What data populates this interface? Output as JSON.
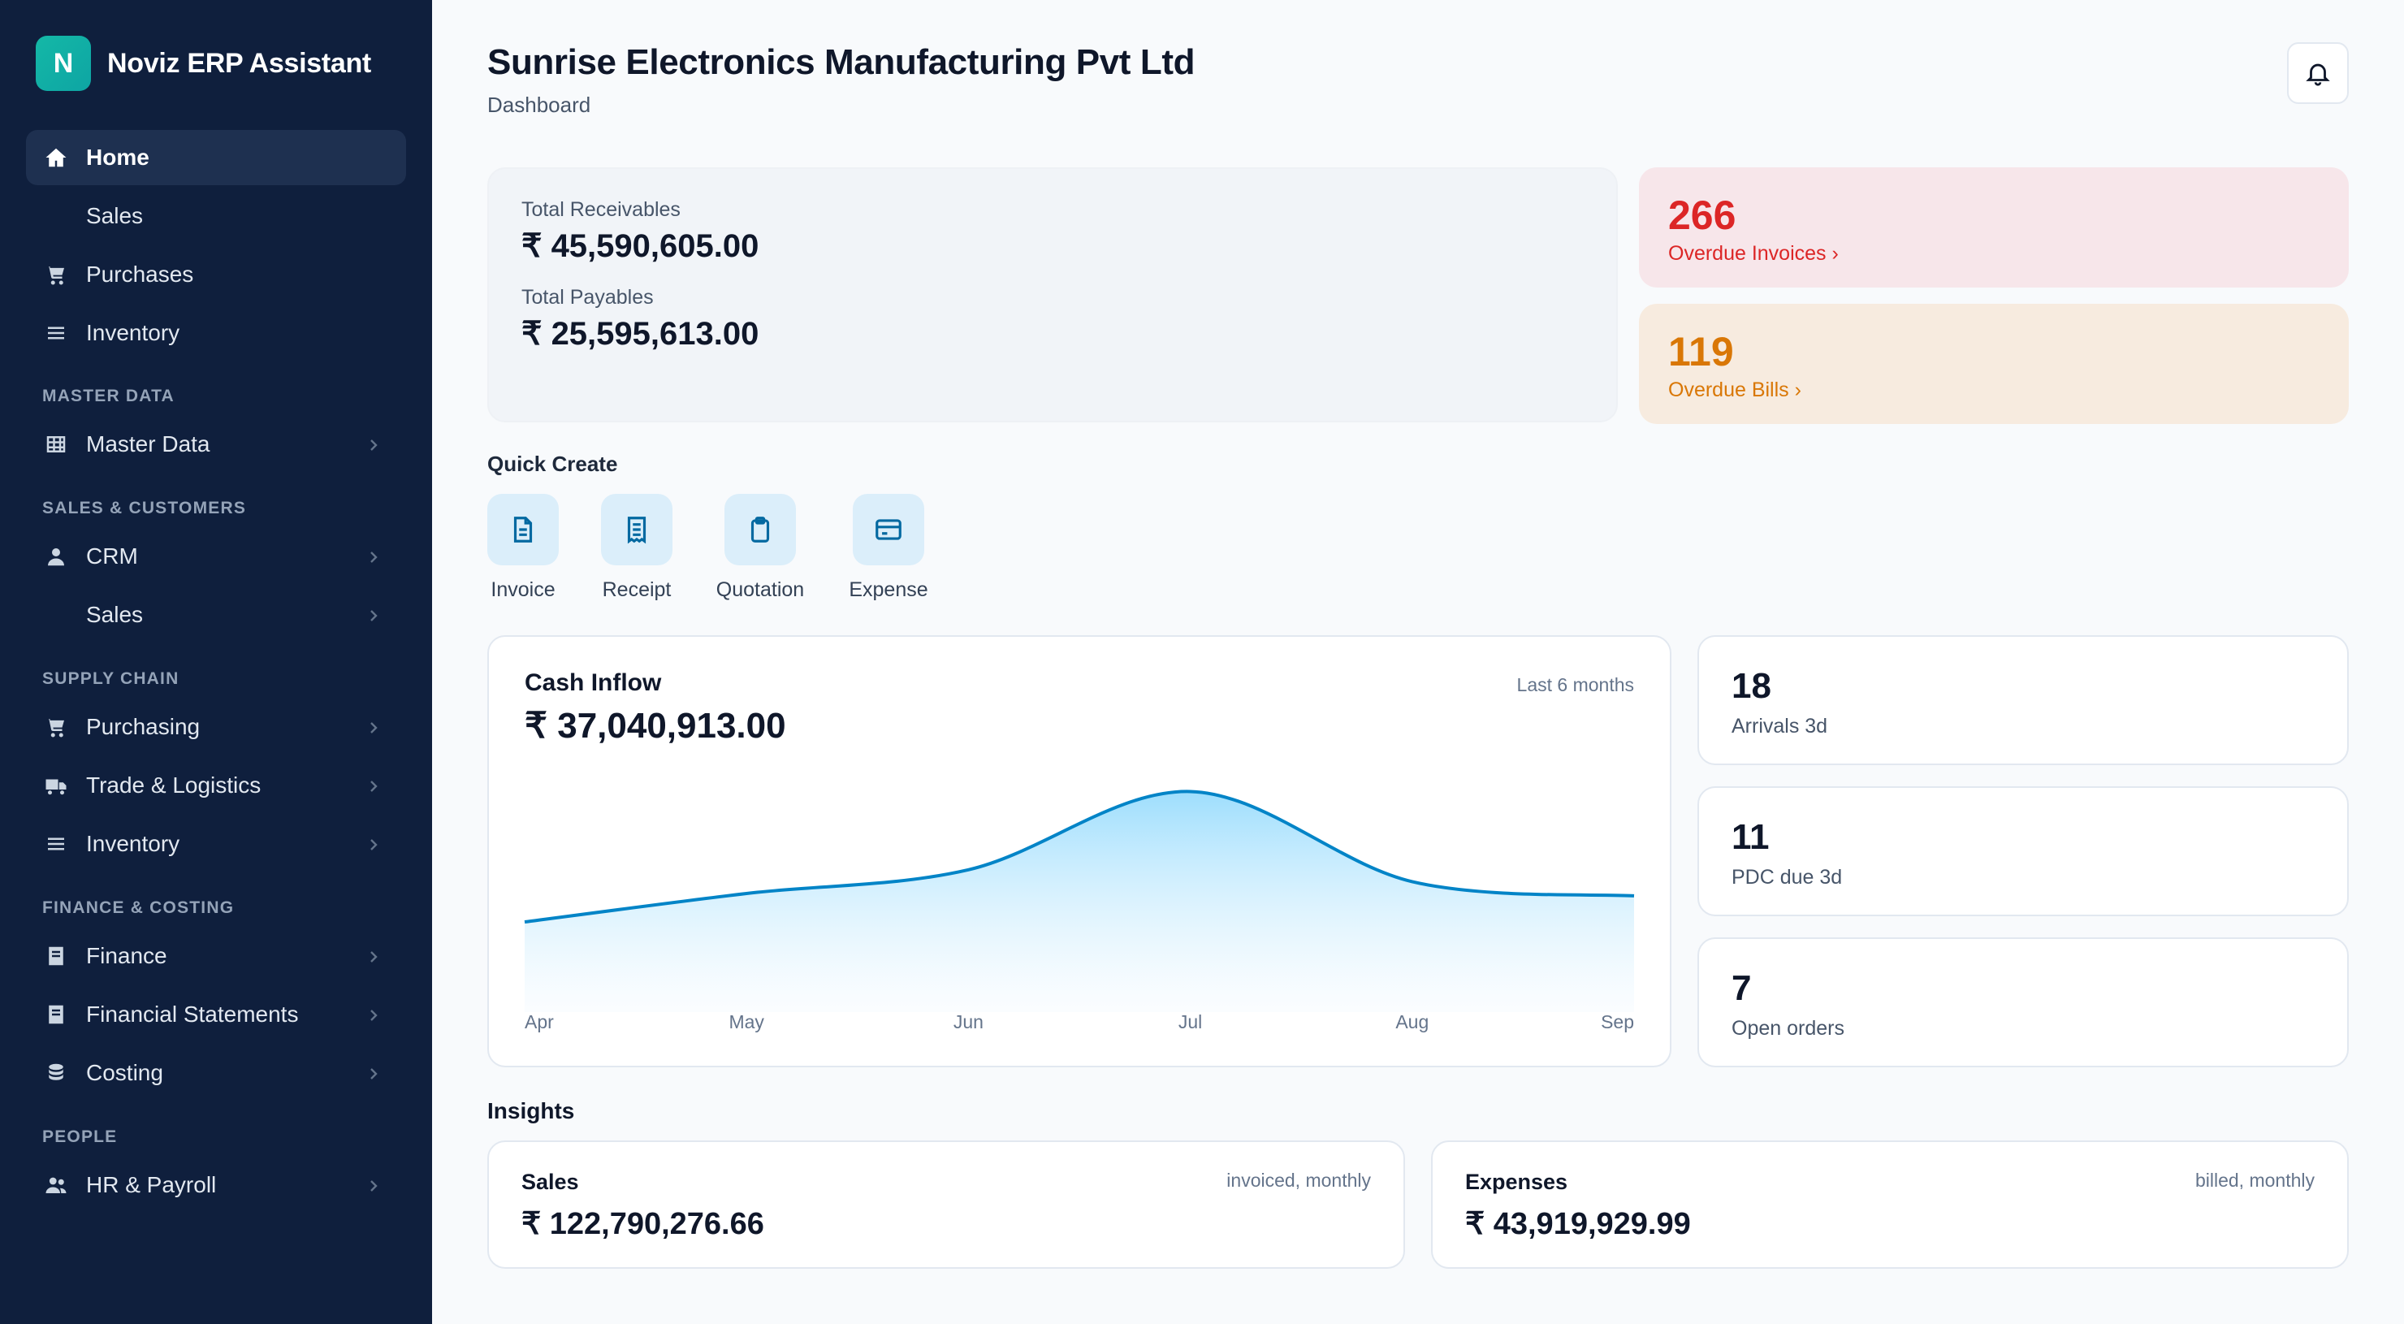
{
  "brand": {
    "logo_letter": "N",
    "name": "Noviz ERP Assistant"
  },
  "sidebar": {
    "items": [
      {
        "label": "Home",
        "icon": "home-icon",
        "active": true
      },
      {
        "label": "Sales",
        "icon": ""
      },
      {
        "label": "Purchases",
        "icon": "cart-icon"
      },
      {
        "label": "Inventory",
        "icon": "list-icon"
      }
    ],
    "sections": [
      {
        "label": "MASTER DATA",
        "items": [
          {
            "label": "Master Data",
            "icon": "table-icon"
          }
        ]
      },
      {
        "label": "SALES & CUSTOMERS",
        "items": [
          {
            "label": "CRM",
            "icon": "user-icon"
          },
          {
            "label": "Sales",
            "icon": ""
          }
        ]
      },
      {
        "label": "SUPPLY CHAIN",
        "items": [
          {
            "label": "Purchasing",
            "icon": "cart-icon"
          },
          {
            "label": "Trade & Logistics",
            "icon": "truck-icon"
          },
          {
            "label": "Inventory",
            "icon": "list-icon"
          }
        ]
      },
      {
        "label": "FINANCE & COSTING",
        "items": [
          {
            "label": "Finance",
            "icon": "ledger-icon"
          },
          {
            "label": "Financial Statements",
            "icon": "ledger-icon"
          },
          {
            "label": "Costing",
            "icon": "coins-icon"
          }
        ]
      },
      {
        "label": "PEOPLE",
        "items": [
          {
            "label": "HR & Payroll",
            "icon": "people-icon"
          }
        ]
      }
    ]
  },
  "header": {
    "title": "Sunrise Electronics Manufacturing Pvt Ltd",
    "subtitle": "Dashboard",
    "bell_icon": "bell-icon"
  },
  "totals": {
    "receivables_label": "Total Receivables",
    "receivables_value": "₹ 45,590,605.00",
    "payables_label": "Total Payables",
    "payables_value": "₹ 25,595,613.00"
  },
  "overdue": {
    "invoices_count": "266",
    "invoices_link": "Overdue Invoices ›",
    "bills_count": "119",
    "bills_link": "Overdue Bills ›",
    "invoice_color": "#dc2626",
    "bills_color": "#d97706"
  },
  "quick_create": {
    "title": "Quick Create",
    "items": [
      {
        "label": "Invoice",
        "icon": "document-icon"
      },
      {
        "label": "Receipt",
        "icon": "receipt-icon"
      },
      {
        "label": "Quotation",
        "icon": "clipboard-icon"
      },
      {
        "label": "Expense",
        "icon": "credit-card-icon"
      }
    ]
  },
  "cash_inflow": {
    "title": "Cash Inflow",
    "period": "Last 6 months",
    "value": "₹ 37,040,913.00"
  },
  "chart_data": {
    "type": "area",
    "title": "Cash Inflow",
    "categories": [
      "Apr",
      "May",
      "Jun",
      "Jul",
      "Aug",
      "Sep"
    ],
    "values": [
      0.38,
      0.5,
      0.6,
      0.93,
      0.55,
      0.49
    ],
    "ylim": [
      0,
      1
    ],
    "grid": false,
    "line_color": "#0284c7",
    "fill_color": "#bae6fd"
  },
  "stats": [
    {
      "value": "18",
      "label": "Arrivals 3d"
    },
    {
      "value": "11",
      "label": "PDC due 3d"
    },
    {
      "value": "7",
      "label": "Open orders"
    }
  ],
  "insights": {
    "title": "Insights",
    "cards": [
      {
        "name": "Sales",
        "note": "invoiced, monthly",
        "value": "₹ 122,790,276.66"
      },
      {
        "name": "Expenses",
        "note": "billed, monthly",
        "value": "₹ 43,919,929.99"
      }
    ]
  }
}
